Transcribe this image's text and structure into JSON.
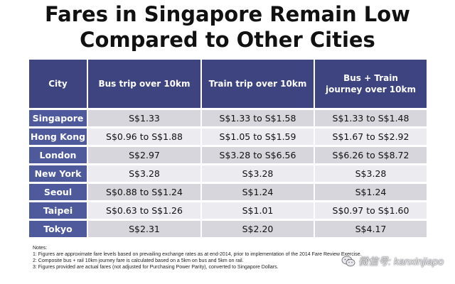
{
  "title": {
    "line1": "Fares in Singapore Remain Low",
    "line2": "Compared to Other Cities"
  },
  "table": {
    "headers": {
      "city": "City",
      "bus": "Bus trip over 10km",
      "train": "Train trip over 10km",
      "both_line1": "Bus + Train",
      "both_line2": "journey over 10km"
    },
    "rows": [
      {
        "city": "Singapore",
        "bus": "S$1.33",
        "train": "S$1.33 to S$1.58",
        "both": "S$1.33 to S$1.48"
      },
      {
        "city": "Hong Kong",
        "bus": "S$0.96 to S$1.88",
        "train": "S$1.05 to S$1.59",
        "both": "S$1.67 to S$2.92"
      },
      {
        "city": "London",
        "bus": "S$2.97",
        "train": "S$3.28 to S$6.56",
        "both": "S$6.26 to S$8.72"
      },
      {
        "city": "New York",
        "bus": "S$3.28",
        "train": "S$3.28",
        "both": "S$3.28"
      },
      {
        "city": "Seoul",
        "bus": "S$0.88 to S$1.24",
        "train": "S$1.24",
        "both": "S$1.24"
      },
      {
        "city": "Taipei",
        "bus": "S$0.63 to S$1.26",
        "train": "S$1.01",
        "both": "S$0.97 to S$1.60"
      },
      {
        "city": "Tokyo",
        "bus": "S$2.31",
        "train": "S$2.20",
        "both": "S$4.17"
      }
    ]
  },
  "notes": {
    "heading": "Notes:",
    "items": [
      "1: Figures are approximate fare levels based on prevailing exchange rates as at end-2014, prior to implementation of the 2014 Fare Review Exercise.",
      "2: Composite bus + rail 10km journey fare is calculated based on a 5km on bus and 5km on rail.",
      "3: Figures provided are actual fares (not adjusted for Purchasing Power Parity), converted to Singapore Dollars."
    ]
  },
  "watermark": {
    "text": "微信号: kanxinjiapo",
    "icon": "wechat-icon"
  },
  "colors": {
    "header_bg": "#3e4480",
    "city_bg": "#4f5a9c",
    "row_odd": "#d6d6dc",
    "row_even": "#ececf0"
  }
}
